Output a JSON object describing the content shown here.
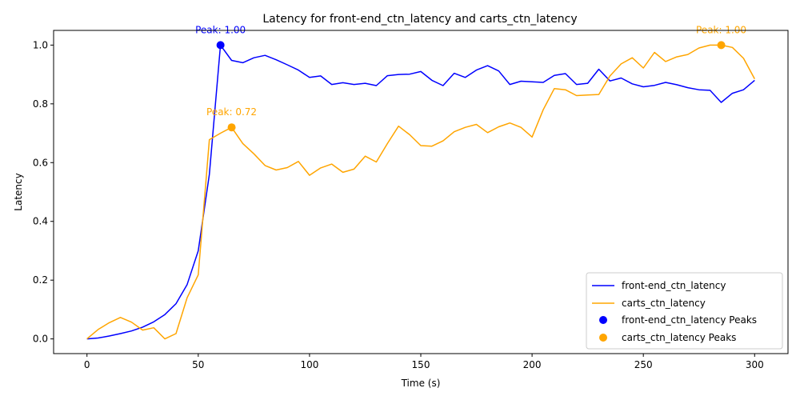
{
  "chart_data": {
    "type": "line",
    "title": "Latency for front-end_ctn_latency and carts_ctn_latency",
    "xlabel": "Time (s)",
    "ylabel": "Latency",
    "xlim": [
      -15,
      315
    ],
    "ylim": [
      -0.05,
      1.05
    ],
    "xticks": [
      0,
      50,
      100,
      150,
      200,
      250,
      300
    ],
    "xtick_labels": [
      "0",
      "50",
      "100",
      "150",
      "200",
      "250",
      "300"
    ],
    "yticks": [
      0.0,
      0.2,
      0.4,
      0.6,
      0.8,
      1.0
    ],
    "ytick_labels": [
      "0.0",
      "0.2",
      "0.4",
      "0.6",
      "0.8",
      "1.0"
    ],
    "grid": false,
    "legend_position": "lower-right",
    "x": [
      0,
      5,
      10,
      15,
      20,
      25,
      30,
      35,
      40,
      45,
      50,
      55,
      60,
      65,
      70,
      75,
      80,
      85,
      90,
      95,
      100,
      105,
      110,
      115,
      120,
      125,
      130,
      135,
      140,
      145,
      150,
      155,
      160,
      165,
      170,
      175,
      180,
      185,
      190,
      195,
      200,
      205,
      210,
      215,
      220,
      225,
      230,
      235,
      240,
      245,
      250,
      255,
      260,
      265,
      270,
      275,
      280,
      285,
      290,
      295,
      300
    ],
    "series": [
      {
        "name": "front-end_ctn_latency",
        "color": "#0000ff",
        "values": [
          0.0,
          0.003,
          0.01,
          0.018,
          0.027,
          0.04,
          0.058,
          0.083,
          0.12,
          0.185,
          0.3,
          0.56,
          1.0,
          0.948,
          0.94,
          0.957,
          0.965,
          0.95,
          0.933,
          0.915,
          0.89,
          0.895,
          0.866,
          0.872,
          0.866,
          0.87,
          0.862,
          0.896,
          0.9,
          0.901,
          0.91,
          0.88,
          0.862,
          0.904,
          0.89,
          0.915,
          0.93,
          0.912,
          0.866,
          0.877,
          0.875,
          0.873,
          0.897,
          0.903,
          0.866,
          0.87,
          0.918,
          0.878,
          0.888,
          0.868,
          0.858,
          0.863,
          0.873,
          0.865,
          0.855,
          0.848,
          0.846,
          0.805,
          0.836,
          0.848,
          0.88
        ]
      },
      {
        "name": "carts_ctn_latency",
        "color": "#ffa500",
        "values": [
          0.0,
          0.032,
          0.055,
          0.073,
          0.057,
          0.03,
          0.038,
          0.0,
          0.018,
          0.14,
          0.218,
          0.678,
          0.7,
          0.72,
          0.665,
          0.63,
          0.59,
          0.575,
          0.583,
          0.604,
          0.557,
          0.582,
          0.595,
          0.567,
          0.578,
          0.622,
          0.602,
          0.665,
          0.724,
          0.695,
          0.658,
          0.656,
          0.674,
          0.705,
          0.72,
          0.73,
          0.702,
          0.722,
          0.735,
          0.72,
          0.687,
          0.78,
          0.852,
          0.848,
          0.828,
          0.83,
          0.832,
          0.895,
          0.936,
          0.957,
          0.922,
          0.975,
          0.944,
          0.96,
          0.968,
          0.99,
          1.0,
          1.0,
          0.992,
          0.955,
          0.885
        ]
      }
    ],
    "peaks": [
      {
        "name": "front-end_ctn_latency Peaks",
        "color": "#0000ff",
        "x": 60,
        "y": 1.0,
        "label": "Peak: 1.00"
      },
      {
        "name": "carts_ctn_latency Peaks",
        "color": "#ffa500",
        "x": 65,
        "y": 0.72,
        "label": "Peak: 0.72"
      },
      {
        "name": "carts_ctn_latency Peaks",
        "color": "#ffa500",
        "x": 285,
        "y": 1.0,
        "label": "Peak: 1.00"
      }
    ],
    "legend": [
      {
        "label": "front-end_ctn_latency",
        "kind": "line",
        "color": "#0000ff"
      },
      {
        "label": "carts_ctn_latency",
        "kind": "line",
        "color": "#ffa500"
      },
      {
        "label": "front-end_ctn_latency Peaks",
        "kind": "marker",
        "color": "#0000ff"
      },
      {
        "label": "carts_ctn_latency Peaks",
        "kind": "marker",
        "color": "#ffa500"
      }
    ]
  }
}
